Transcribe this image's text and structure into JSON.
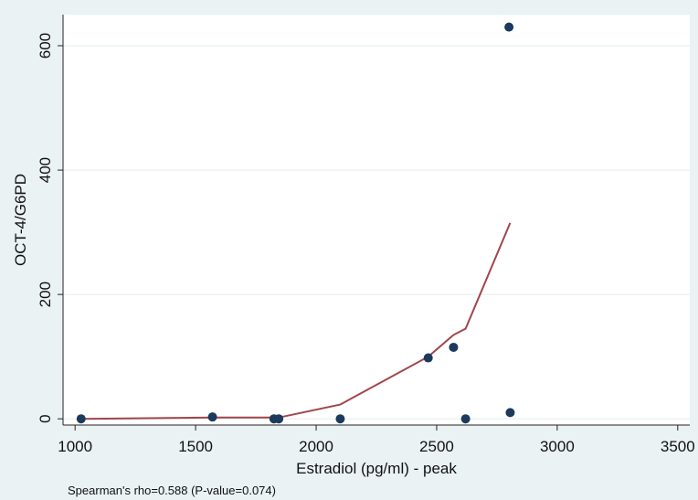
{
  "chart_data": {
    "type": "scatter",
    "xlabel": "Estradiol (pg/ml) - peak",
    "ylabel": "OCT-4/G6PD",
    "note": "Spearman's rho=0.588 (P-value=0.074)",
    "xlim": [
      950,
      3550
    ],
    "ylim": [
      -10,
      650
    ],
    "x_ticks": [
      1000,
      1500,
      2000,
      2500,
      3000,
      3500
    ],
    "y_ticks": [
      0,
      200,
      400,
      600
    ],
    "grid": "horizontal",
    "colors": {
      "points": "#1b3a5c",
      "line": "#a0454a",
      "plot_bg": "#ffffff",
      "outer_bg": "#eaf2f3",
      "grid": "#e6ecec"
    },
    "points": [
      {
        "x": 1025,
        "y": 0
      },
      {
        "x": 1570,
        "y": 3
      },
      {
        "x": 1825,
        "y": 0
      },
      {
        "x": 1845,
        "y": 0
      },
      {
        "x": 2100,
        "y": 0
      },
      {
        "x": 2465,
        "y": 98
      },
      {
        "x": 2570,
        "y": 115
      },
      {
        "x": 2620,
        "y": 0
      },
      {
        "x": 2800,
        "y": 630
      },
      {
        "x": 2805,
        "y": 10
      }
    ],
    "fit_line": [
      {
        "x": 1025,
        "y": 0
      },
      {
        "x": 1570,
        "y": 2
      },
      {
        "x": 1845,
        "y": 2
      },
      {
        "x": 2100,
        "y": 23
      },
      {
        "x": 2465,
        "y": 100
      },
      {
        "x": 2570,
        "y": 135
      },
      {
        "x": 2620,
        "y": 145
      },
      {
        "x": 2805,
        "y": 315
      }
    ]
  }
}
